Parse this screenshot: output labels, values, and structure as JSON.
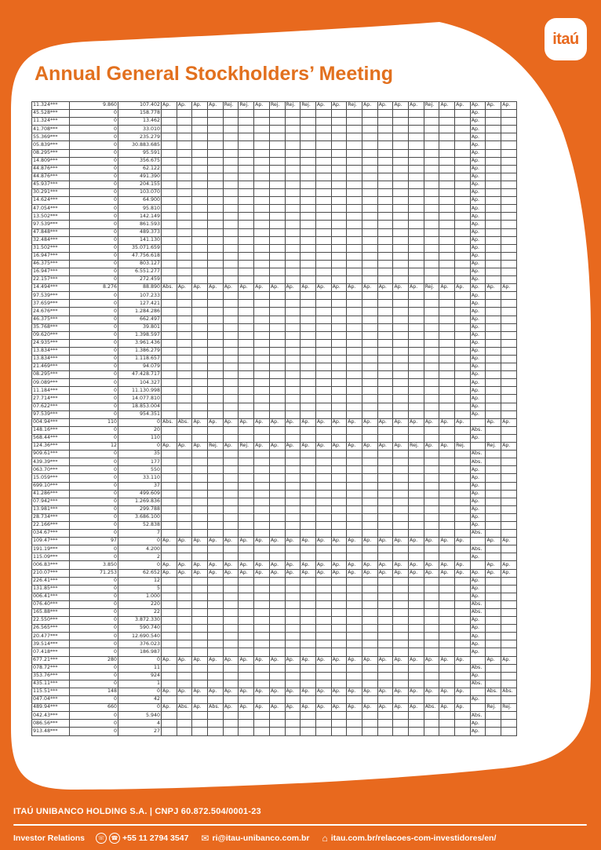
{
  "brand": {
    "logo_text": "itaú",
    "orange": "#E8691E",
    "title_color": "#E2701E",
    "white": "#FFFFFF",
    "table_border": "#4a4a4a"
  },
  "header": {
    "title": "Annual General Stockholders’ Meeting"
  },
  "table": {
    "vote_columns": 23,
    "default_mark_col": 21,
    "rows": [
      {
        "c1": "11.324***",
        "c2": "9.860",
        "c3": "107.402",
        "votes": [
          "Ap.",
          "Ap.",
          "Ap.",
          "Ap.",
          "Rej.",
          "Rej.",
          "Ap.",
          "Rej.",
          "Rej.",
          "Rej.",
          "Ap.",
          "Ap.",
          "Rej.",
          "Ap.",
          "Ap.",
          "Ap.",
          "Ap.",
          "Rej.",
          "Ap.",
          "Ap.",
          "Ap.",
          "Ap.",
          "Ap."
        ]
      },
      {
        "c1": "45.528***",
        "c2": "0",
        "c3": "158.778",
        "mark": "Ap."
      },
      {
        "c1": "11.324***",
        "c2": "0",
        "c3": "13.462",
        "mark": "Ap."
      },
      {
        "c1": "41.708***",
        "c2": "0",
        "c3": "33.010",
        "mark": "Ap."
      },
      {
        "c1": "55.369***",
        "c2": "0",
        "c3": "235.279",
        "mark": "Ap."
      },
      {
        "c1": "05.839***",
        "c2": "0",
        "c3": "30.883.685",
        "mark": "Ap."
      },
      {
        "c1": "08.295***",
        "c2": "0",
        "c3": "95.591",
        "mark": "Ap."
      },
      {
        "c1": "14.809***",
        "c2": "0",
        "c3": "356.675",
        "mark": "Ap."
      },
      {
        "c1": "44.876***",
        "c2": "0",
        "c3": "62.122",
        "mark": "Ap."
      },
      {
        "c1": "44.876***",
        "c2": "0",
        "c3": "491.390",
        "mark": "Ap."
      },
      {
        "c1": "45.937***",
        "c2": "0",
        "c3": "204.155",
        "mark": "Ap."
      },
      {
        "c1": "30.291***",
        "c2": "0",
        "c3": "103.070",
        "mark": "Ap."
      },
      {
        "c1": "14.624***",
        "c2": "0",
        "c3": "64.900",
        "mark": "Ap."
      },
      {
        "c1": "47.054***",
        "c2": "0",
        "c3": "95.810",
        "mark": "Ap."
      },
      {
        "c1": "13.502***",
        "c2": "0",
        "c3": "142.149",
        "mark": "Ap."
      },
      {
        "c1": "97.539***",
        "c2": "0",
        "c3": "861.593",
        "mark": "Ap."
      },
      {
        "c1": "47.848***",
        "c2": "0",
        "c3": "489.373",
        "mark": "Ap."
      },
      {
        "c1": "32.484***",
        "c2": "0",
        "c3": "141.130",
        "mark": "Ap."
      },
      {
        "c1": "31.502***",
        "c2": "0",
        "c3": "35.071.659",
        "mark": "Ap."
      },
      {
        "c1": "16.947***",
        "c2": "0",
        "c3": "47.756.618",
        "mark": "Ap."
      },
      {
        "c1": "46.375***",
        "c2": "0",
        "c3": "803.127",
        "mark": "Ap."
      },
      {
        "c1": "16.947***",
        "c2": "0",
        "c3": "6.551.277",
        "mark": "Ap."
      },
      {
        "c1": "22.157***",
        "c2": "0",
        "c3": "272.459",
        "mark": "Ap."
      },
      {
        "c1": "14.494***",
        "c2": "8.276",
        "c3": "88.890",
        "votes": [
          "Abs.",
          "Ap.",
          "Ap.",
          "Ap.",
          "Ap.",
          "Ap.",
          "Ap.",
          "Ap.",
          "Ap.",
          "Ap.",
          "Ap.",
          "Ap.",
          "Ap.",
          "Ap.",
          "Ap.",
          "Ap.",
          "Ap.",
          "Rej.",
          "Ap.",
          "Ap.",
          "Ap.",
          "Ap.",
          "Ap."
        ]
      },
      {
        "c1": "97.539***",
        "c2": "0",
        "c3": "107.233",
        "mark": "Ap."
      },
      {
        "c1": "37.659***",
        "c2": "0",
        "c3": "127.421",
        "mark": "Ap."
      },
      {
        "c1": "24.676***",
        "c2": "0",
        "c3": "1.284.286",
        "mark": "Ap."
      },
      {
        "c1": "46.375***",
        "c2": "0",
        "c3": "662.497",
        "mark": "Ap."
      },
      {
        "c1": "35.768***",
        "c2": "0",
        "c3": "39.801",
        "mark": "Ap."
      },
      {
        "c1": "09.620***",
        "c2": "0",
        "c3": "1.398.597",
        "mark": "Ap."
      },
      {
        "c1": "24.935***",
        "c2": "0",
        "c3": "3.961.436",
        "mark": "Ap."
      },
      {
        "c1": "13.834***",
        "c2": "0",
        "c3": "1.386.279",
        "mark": "Ap."
      },
      {
        "c1": "13.834***",
        "c2": "0",
        "c3": "1.118.657",
        "mark": "Ap."
      },
      {
        "c1": "21.469***",
        "c2": "0",
        "c3": "94.079",
        "mark": "Ap."
      },
      {
        "c1": "08.295***",
        "c2": "0",
        "c3": "47.428.717",
        "mark": "Ap."
      },
      {
        "c1": "09.089***",
        "c2": "0",
        "c3": "104.327",
        "mark": "Ap."
      },
      {
        "c1": "11.184***",
        "c2": "0",
        "c3": "11.130.998",
        "mark": "Ap."
      },
      {
        "c1": "27.714***",
        "c2": "0",
        "c3": "14.077.810",
        "mark": "Ap."
      },
      {
        "c1": "07.622***",
        "c2": "0",
        "c3": "18.853.004",
        "mark": "Ap."
      },
      {
        "c1": "97.539***",
        "c2": "0",
        "c3": "954.351",
        "mark": "Ap."
      },
      {
        "c1": "004.94***",
        "c2": "110",
        "c3": "0",
        "votes": [
          "Abs.",
          "Abs.",
          "Ap.",
          "Ap.",
          "Ap.",
          "Ap.",
          "Ap.",
          "Ap.",
          "Ap.",
          "Ap.",
          "Ap.",
          "Ap.",
          "Ap.",
          "Ap.",
          "Ap.",
          "Ap.",
          "Ap.",
          "Ap.",
          "Ap.",
          "Ap.",
          "",
          "Ap.",
          "Ap."
        ]
      },
      {
        "c1": "148.16***",
        "c2": "0",
        "c3": "20",
        "mark": "Abs."
      },
      {
        "c1": "568.44***",
        "c2": "0",
        "c3": "110",
        "mark": "Ap."
      },
      {
        "c1": "124.36***",
        "c2": "12",
        "c3": "0",
        "votes": [
          "Ap.",
          "Ap.",
          "Ap.",
          "Rej.",
          "Ap.",
          "Rej.",
          "Ap.",
          "Ap.",
          "Ap.",
          "Ap.",
          "Ap.",
          "Ap.",
          "Ap.",
          "Ap.",
          "Ap.",
          "Ap.",
          "Rej.",
          "Ap.",
          "Ap.",
          "Rej.",
          "",
          "Rej.",
          "Ap."
        ]
      },
      {
        "c1": "909.61***",
        "c2": "0",
        "c3": "35",
        "mark": "Abs."
      },
      {
        "c1": "439.39***",
        "c2": "0",
        "c3": "177",
        "mark": "Abs."
      },
      {
        "c1": "063.70***",
        "c2": "0",
        "c3": "550",
        "mark": "Ap."
      },
      {
        "c1": "15.059***",
        "c2": "0",
        "c3": "33.110",
        "mark": "Ap."
      },
      {
        "c1": "699.10***",
        "c2": "0",
        "c3": "37",
        "mark": "Ap."
      },
      {
        "c1": "41.286***",
        "c2": "0",
        "c3": "499.609",
        "mark": "Ap."
      },
      {
        "c1": "07.942***",
        "c2": "0",
        "c3": "1.269.836",
        "mark": "Ap."
      },
      {
        "c1": "13.981***",
        "c2": "0",
        "c3": "299.788",
        "mark": "Ap."
      },
      {
        "c1": "28.734***",
        "c2": "0",
        "c3": "3.686.100",
        "mark": "Ap."
      },
      {
        "c1": "22.166***",
        "c2": "0",
        "c3": "52.838",
        "mark": "Ap."
      },
      {
        "c1": "034.67***",
        "c2": "0",
        "c3": "7",
        "mark": "Abs."
      },
      {
        "c1": "109.47***",
        "c2": "97",
        "c3": "0",
        "votes": [
          "Ap.",
          "Ap.",
          "Ap.",
          "Ap.",
          "Ap.",
          "Ap.",
          "Ap.",
          "Ap.",
          "Ap.",
          "Ap.",
          "Ap.",
          "Ap.",
          "Ap.",
          "Ap.",
          "Ap.",
          "Ap.",
          "Ap.",
          "Ap.",
          "Ap.",
          "Ap.",
          "",
          "Ap.",
          "Ap."
        ]
      },
      {
        "c1": "191.19***",
        "c2": "0",
        "c3": "4.200",
        "mark": "Abs."
      },
      {
        "c1": "115.09***",
        "c2": "0",
        "c3": "2",
        "mark": "Ap."
      },
      {
        "c1": "006.83***",
        "c2": "3.850",
        "c3": "0",
        "votes": [
          "Ap.",
          "Ap.",
          "Ap.",
          "Ap.",
          "Ap.",
          "Ap.",
          "Ap.",
          "Ap.",
          "Ap.",
          "Ap.",
          "Ap.",
          "Ap.",
          "Ap.",
          "Ap.",
          "Ap.",
          "Ap.",
          "Ap.",
          "Ap.",
          "Ap.",
          "Ap.",
          "",
          "Ap.",
          "Ap."
        ]
      },
      {
        "c1": "210.07***",
        "c2": "71.253",
        "c3": "62.652",
        "votes": [
          "Ap.",
          "Ap.",
          "Ap.",
          "Ap.",
          "Ap.",
          "Ap.",
          "Ap.",
          "Ap.",
          "Ap.",
          "Ap.",
          "Ap.",
          "Ap.",
          "Ap.",
          "Ap.",
          "Ap.",
          "Ap.",
          "Ap.",
          "Ap.",
          "Ap.",
          "Ap.",
          "Ap.",
          "Ap.",
          "Ap."
        ]
      },
      {
        "c1": "226.41***",
        "c2": "0",
        "c3": "12",
        "mark": "Ap."
      },
      {
        "c1": "131.85***",
        "c2": "0",
        "c3": "5",
        "mark": "Ap."
      },
      {
        "c1": "006.41***",
        "c2": "0",
        "c3": "1.000",
        "mark": "Ap."
      },
      {
        "c1": "076.40***",
        "c2": "0",
        "c3": "220",
        "mark": "Abs."
      },
      {
        "c1": "165.88***",
        "c2": "0",
        "c3": "22",
        "mark": "Abs."
      },
      {
        "c1": "22.550***",
        "c2": "0",
        "c3": "3.872.330",
        "mark": "Ap."
      },
      {
        "c1": "26.565***",
        "c2": "0",
        "c3": "590.740",
        "mark": "Ap."
      },
      {
        "c1": "20.477***",
        "c2": "0",
        "c3": "12.690.540",
        "mark": "Ap."
      },
      {
        "c1": "39.514***",
        "c2": "0",
        "c3": "376.023",
        "mark": "Ap."
      },
      {
        "c1": "07.418***",
        "c2": "0",
        "c3": "186.987",
        "mark": "Ap."
      },
      {
        "c1": "677.21***",
        "c2": "280",
        "c3": "0",
        "votes": [
          "Ap.",
          "Ap.",
          "Ap.",
          "Ap.",
          "Ap.",
          "Ap.",
          "Ap.",
          "Ap.",
          "Ap.",
          "Ap.",
          "Ap.",
          "Ap.",
          "Ap.",
          "Ap.",
          "Ap.",
          "Ap.",
          "Ap.",
          "Ap.",
          "Ap.",
          "Ap.",
          "",
          "Ap.",
          "Ap."
        ]
      },
      {
        "c1": "078.72***",
        "c2": "0",
        "c3": "11",
        "mark": "Abs."
      },
      {
        "c1": "353.76***",
        "c2": "0",
        "c3": "924",
        "mark": "Ap."
      },
      {
        "c1": "435.11***",
        "c2": "0",
        "c3": "1",
        "mark": "Abs."
      },
      {
        "c1": "115.51***",
        "c2": "148",
        "c3": "0",
        "votes": [
          "Ap.",
          "Ap.",
          "Ap.",
          "Ap.",
          "Ap.",
          "Ap.",
          "Ap.",
          "Ap.",
          "Ap.",
          "Ap.",
          "Ap.",
          "Ap.",
          "Ap.",
          "Ap.",
          "Ap.",
          "Ap.",
          "Ap.",
          "Ap.",
          "Ap.",
          "Ap.",
          "",
          "Abs.",
          "Abs."
        ]
      },
      {
        "c1": "047.04***",
        "c2": "0",
        "c3": "42",
        "mark": "Ap."
      },
      {
        "c1": "489.94***",
        "c2": "660",
        "c3": "0",
        "votes": [
          "Ap.",
          "Abs.",
          "Ap.",
          "Abs.",
          "Ap.",
          "Ap.",
          "Ap.",
          "Ap.",
          "Ap.",
          "Ap.",
          "Ap.",
          "Ap.",
          "Ap.",
          "Ap.",
          "Ap.",
          "Ap.",
          "Ap.",
          "Abs.",
          "Ap.",
          "Ap.",
          "",
          "Rej.",
          "Rej."
        ]
      },
      {
        "c1": "042.43***",
        "c2": "0",
        "c3": "5.940",
        "mark": "Abs."
      },
      {
        "c1": "086.56***",
        "c2": "0",
        "c3": "4",
        "mark": "Ap."
      },
      {
        "c1": "913.48***",
        "c2": "0",
        "c3": "27",
        "mark": "Ap."
      }
    ]
  },
  "footer": {
    "company_line": "ITAÚ UNIBANCO HOLDING S.A. | CNPJ 60.872.504/0001-23",
    "ir_label": "Investor Relations",
    "phone": "+55 11 2794 3547",
    "email": "ri@itau-unibanco.com.br",
    "website": "itau.com.br/relacoes-com-investidores/en/",
    "icons": {
      "headset": "☏",
      "phone": "☎",
      "email": "✉",
      "website": "⌂"
    }
  }
}
